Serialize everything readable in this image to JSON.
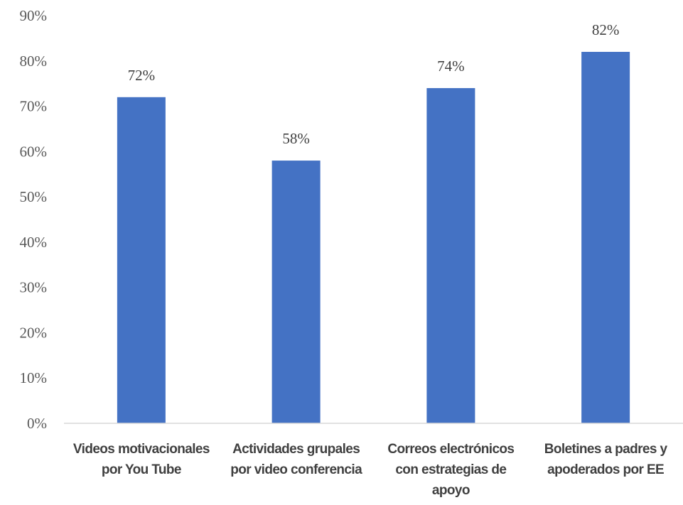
{
  "chart_data": {
    "type": "bar",
    "categories": [
      [
        "Videos motivacionales",
        "por You Tube"
      ],
      [
        "Actividades grupales",
        "por video conferencia"
      ],
      [
        "Correos electrónicos",
        "con estrategias de",
        "apoyo"
      ],
      [
        "Boletines a padres y",
        "apoderados por EE"
      ]
    ],
    "values": [
      72,
      58,
      74,
      82
    ],
    "data_labels": [
      "72%",
      "58%",
      "74%",
      "82%"
    ],
    "y_ticks": [
      "0%",
      "10%",
      "20%",
      "30%",
      "40%",
      "50%",
      "60%",
      "70%",
      "80%",
      "90%"
    ],
    "ylim": [
      0,
      90
    ],
    "bar_color": "#4472C4",
    "grid": false,
    "legend": "none"
  }
}
